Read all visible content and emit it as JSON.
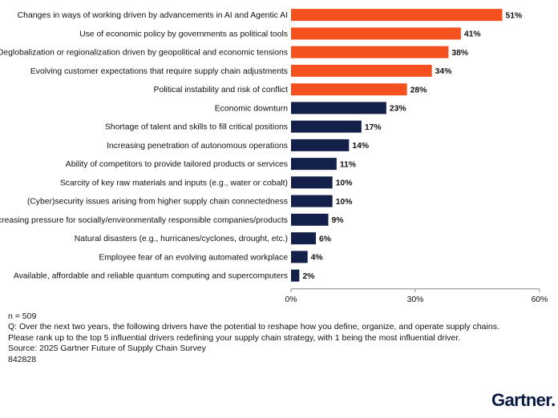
{
  "chart_data": {
    "type": "bar",
    "orientation": "horizontal",
    "categories": [
      "Changes in ways of working driven by advancements in AI and Agentic AI",
      "Use of economic policy by governments as political tools",
      "Deglobalization or regionalization driven by geopolitical and economic tensions",
      "Evolving customer expectations that require supply chain adjustments",
      "Political instability and risk of conflict",
      "Economic downturn",
      "Shortage of talent and skills to fill critical positions",
      "Increasing penetration of autonomous operations",
      "Ability of competitors to provide tailored products or services",
      "Scarcity of key raw materials and inputs (e.g., water or cobalt)",
      "(Cyber)security issues arising from higher supply chain connectedness",
      "Increasing pressure for socially/environmentally responsible companies/products",
      "Natural disasters (e.g., hurricanes/cyclones, drought, etc.)",
      "Employee fear of an evolving automated workplace",
      "Available, affordable and reliable quantum computing and supercomputers"
    ],
    "values": [
      51,
      41,
      38,
      34,
      28,
      23,
      17,
      14,
      11,
      10,
      10,
      9,
      6,
      4,
      2
    ],
    "value_labels": [
      "51%",
      "41%",
      "38%",
      "34%",
      "28%",
      "23%",
      "17%",
      "14%",
      "11%",
      "10%",
      "10%",
      "9%",
      "6%",
      "4%",
      "2%"
    ],
    "highlight_count": 5,
    "colors": {
      "highlight": "#f4511e",
      "default": "#13214a",
      "axis": "#8a8a8a"
    },
    "xlim": [
      0,
      60
    ],
    "xticks": [
      0,
      30,
      60
    ],
    "xtick_labels": [
      "0%",
      "30%",
      "60%"
    ],
    "grid": false,
    "title": "",
    "xlabel": "",
    "ylabel": ""
  },
  "footnotes": {
    "n": "n = 509",
    "question": "Q: Over the next two years, the following drivers have the potential to reshape how you define, organize, and operate supply chains.",
    "instruction": "Please rank up to the top 5 influential drivers redefining your supply chain strategy, with 1 being the most influential driver.",
    "source": "Source: 2025 Gartner Future of Supply Chain Survey",
    "id": "842828"
  },
  "brand": {
    "name": "Gartner",
    "dot": "."
  }
}
